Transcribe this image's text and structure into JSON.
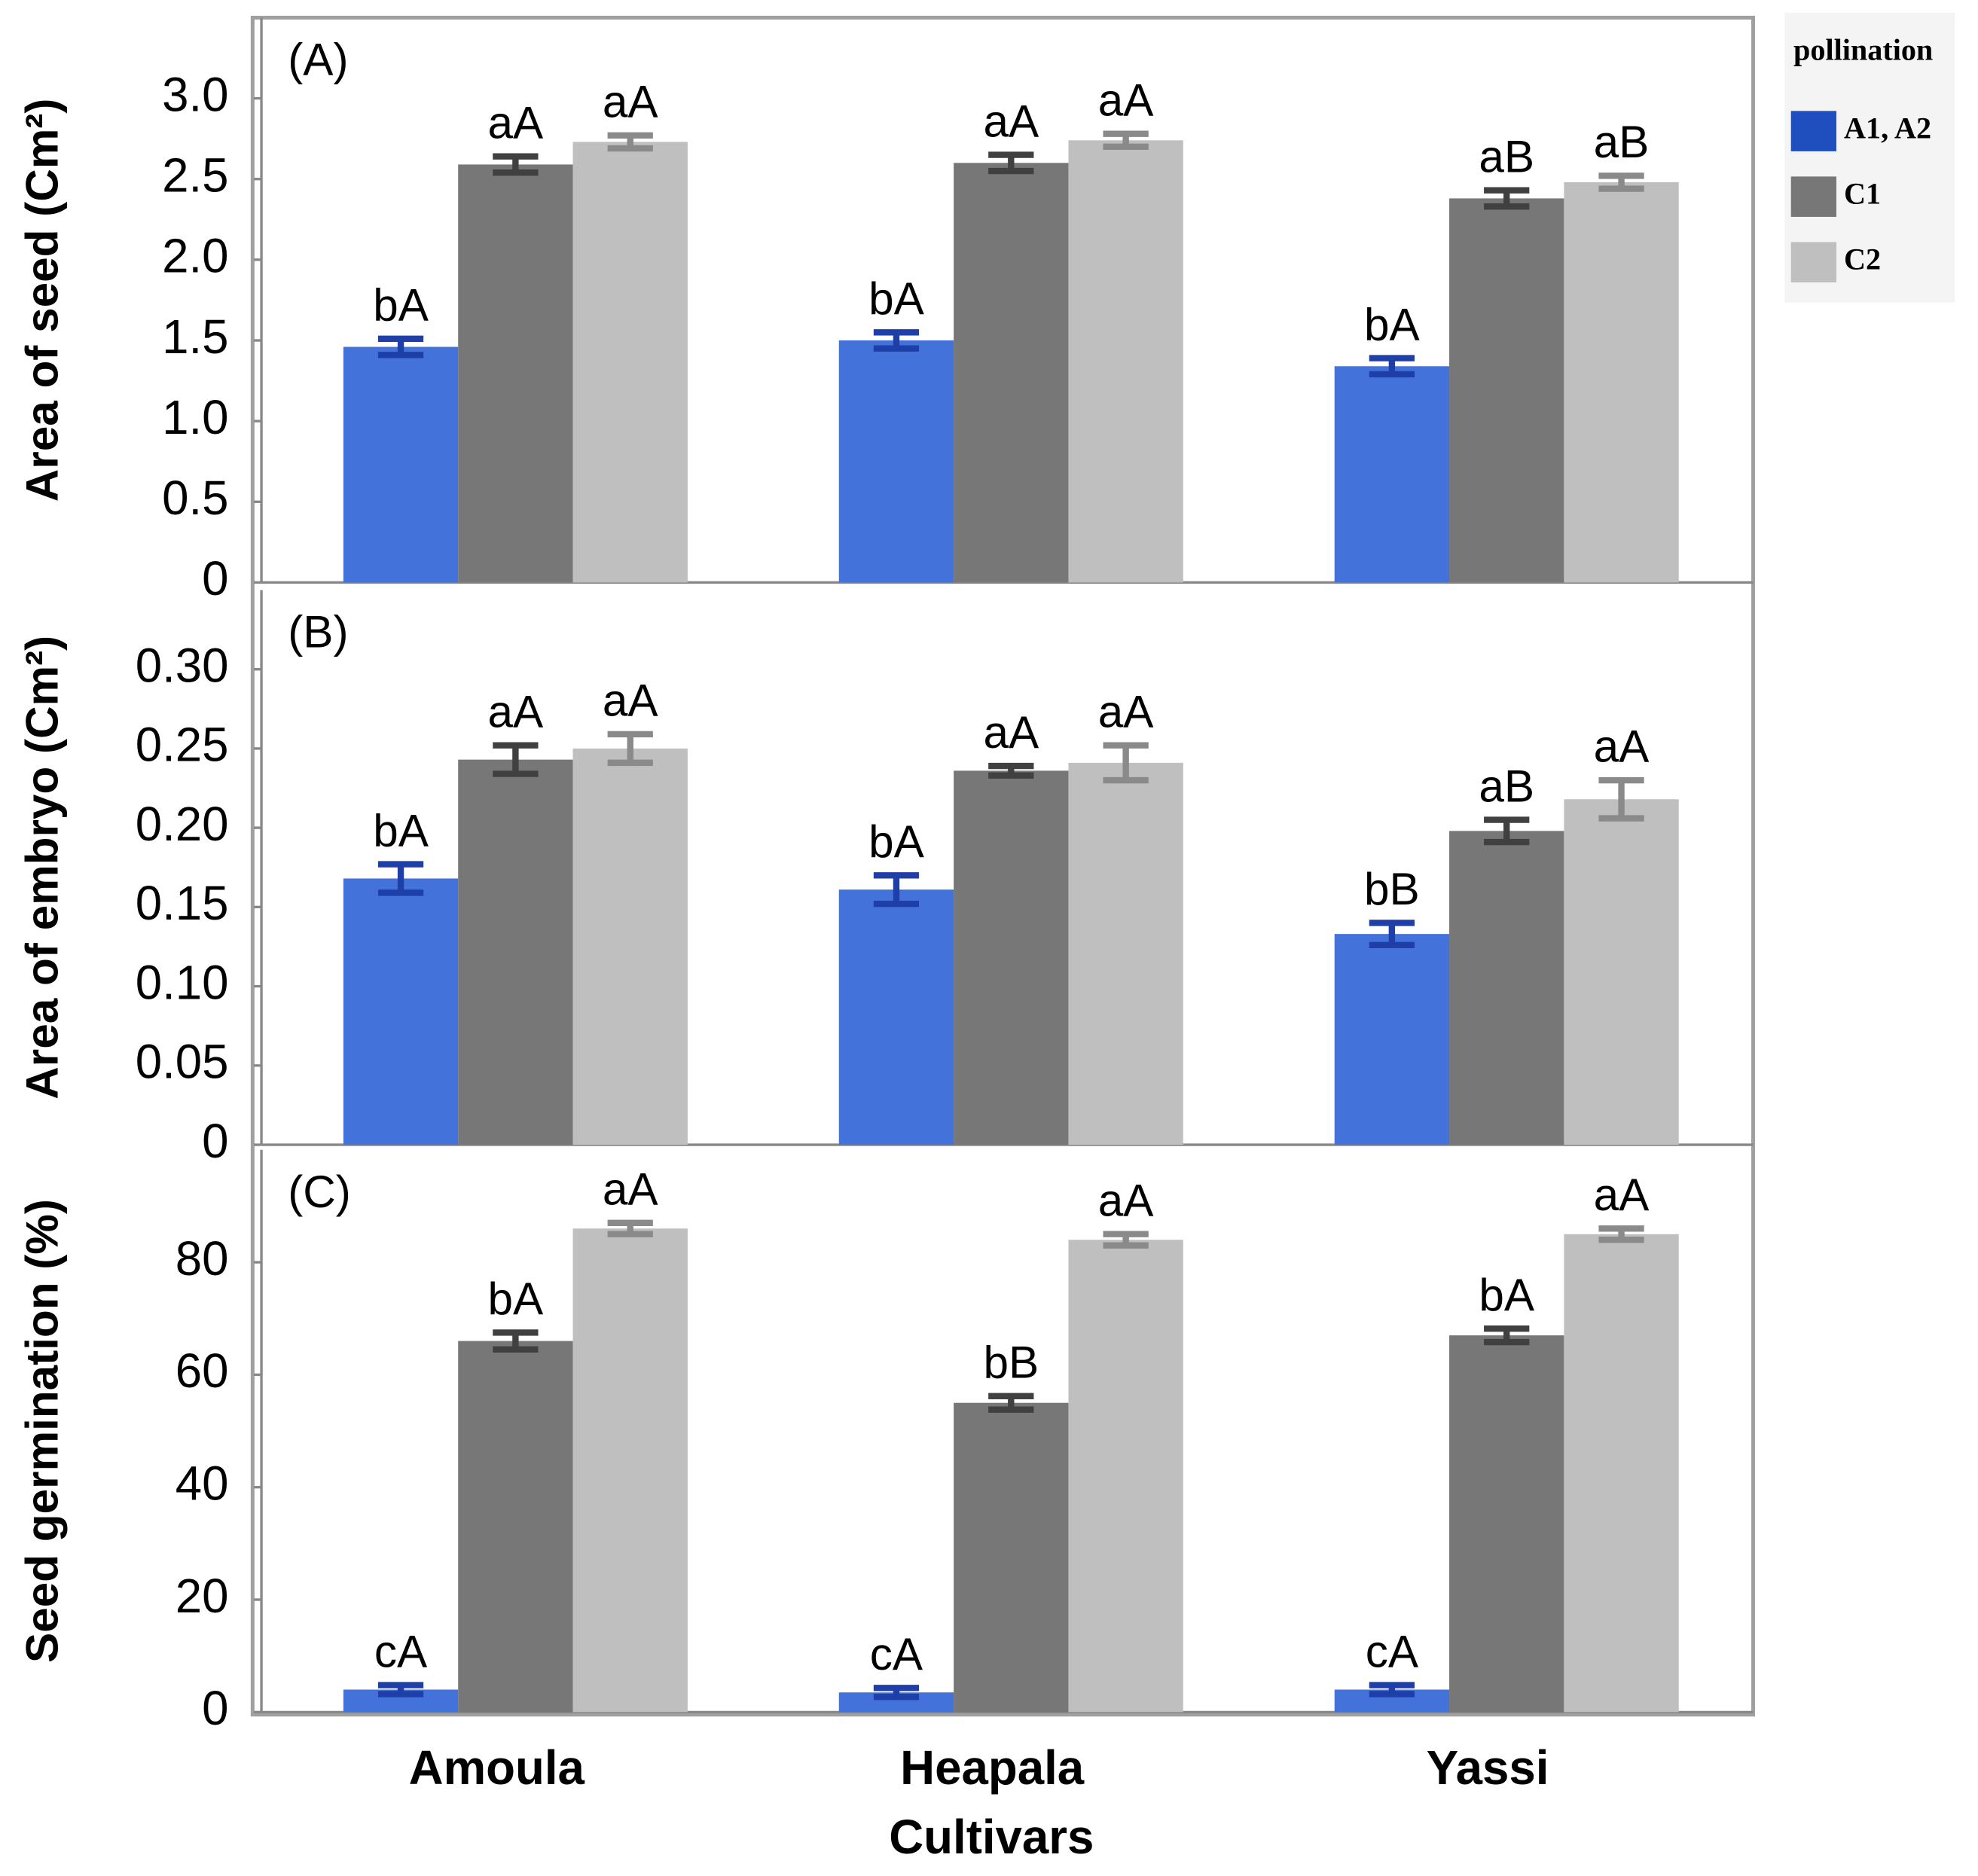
{
  "chart_data": [
    {
      "type": "bar",
      "panel_label": "(A)",
      "y_label": "Area of seed (Cm²)",
      "legend_title": "pollination",
      "ylim": [
        0,
        3.5
      ],
      "yticks": [
        0,
        0.5,
        {
          "value": 1,
          "label": "1.0"
        },
        1.5,
        {
          "value": 2,
          "label": "2.0"
        },
        2.5,
        {
          "value": 3,
          "label": "3.0"
        }
      ],
      "series": [
        {
          "name": "A1, A2",
          "color": "#4472db",
          "values": [
            1.46,
            1.5,
            1.34
          ],
          "errors": [
            0.05,
            0.05,
            0.05
          ],
          "labels": [
            "bA",
            "bA",
            "bA"
          ]
        },
        {
          "name": "C1",
          "color": "#777777",
          "values": [
            2.59,
            2.6,
            2.38
          ],
          "errors": [
            0.05,
            0.05,
            0.05
          ],
          "labels": [
            "aA",
            "aA",
            "aB"
          ]
        },
        {
          "name": "C2",
          "color": "#bfbfbf",
          "values": [
            2.73,
            2.74,
            2.48
          ],
          "errors": [
            0.04,
            0.04,
            0.04
          ],
          "labels": [
            "aA",
            "aA",
            "aB"
          ]
        }
      ]
    },
    {
      "type": "bar",
      "panel_label": "(B)",
      "y_label": "Area of embryo (Cm²)",
      "ylim": [
        0,
        0.35
      ],
      "yticks": [
        0,
        0.05,
        {
          "value": 0.1,
          "label": "0.10"
        },
        0.15,
        {
          "value": 0.2,
          "label": "0.20"
        },
        0.25,
        {
          "value": 0.3,
          "label": "0.30"
        }
      ],
      "series": [
        {
          "color": "#4472db",
          "values": [
            0.168,
            0.161,
            0.133
          ],
          "errors": [
            0.009,
            0.009,
            0.007
          ],
          "labels": [
            "bA",
            "bA",
            "bB"
          ]
        },
        {
          "color": "#777777",
          "values": [
            0.243,
            0.236,
            0.198
          ],
          "errors": [
            0.009,
            0.003,
            0.007
          ],
          "labels": [
            "aA",
            "aA",
            "aB"
          ]
        },
        {
          "color": "#bfbfbf",
          "values": [
            0.25,
            0.241,
            0.218
          ],
          "errors": [
            0.009,
            0.011,
            0.012
          ],
          "labels": [
            "aA",
            "aA",
            "aA"
          ]
        }
      ]
    },
    {
      "type": "bar",
      "panel_label": "(C)",
      "y_label": "Seed germination (%)",
      "x_label": "Cultivars",
      "categories": [
        "Amoula",
        "Heapala",
        "Yassi"
      ],
      "ylim": [
        0,
        100
      ],
      "yticks": [
        0,
        20,
        40,
        60,
        80
      ],
      "series": [
        {
          "color": "#4472db",
          "values": [
            4,
            3.5,
            4
          ],
          "errors": [
            0.8,
            0.8,
            0.8
          ],
          "labels": [
            "cA",
            "cA",
            "cA"
          ]
        },
        {
          "color": "#777777",
          "values": [
            66,
            55,
            67
          ],
          "errors": [
            1.5,
            1.2,
            1.2
          ],
          "labels": [
            "bA",
            "bB",
            "bA"
          ]
        },
        {
          "color": "#bfbfbf",
          "values": [
            86,
            84,
            85
          ],
          "errors": [
            1,
            1,
            1
          ],
          "labels": [
            "aA",
            "aA",
            "aA"
          ]
        }
      ]
    }
  ]
}
